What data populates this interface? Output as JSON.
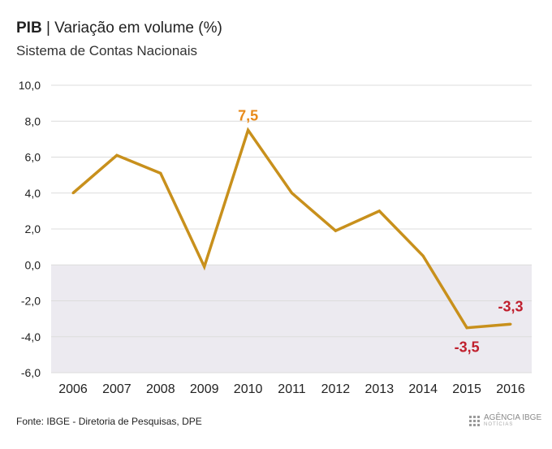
{
  "header": {
    "title_bold": "PIB",
    "title_rest": " | Variação em volume (%)",
    "subtitle": "Sistema de Contas Nacionais"
  },
  "footer": {
    "source": "Fonte: IBGE - Diretoria de Pesquisas, DPE",
    "logo_main": "AGÊNCIA IBGE",
    "logo_sub": "NOTÍCIAS"
  },
  "colors": {
    "line": "#c8901c",
    "highlight_positive": "#e88a1a",
    "highlight_negative": "#c0202e",
    "negative_band": "#eceaf0",
    "grid": "#dcdcdc"
  },
  "chart_data": {
    "type": "line",
    "categories": [
      "2006",
      "2007",
      "2008",
      "2009",
      "2010",
      "2011",
      "2012",
      "2013",
      "2014",
      "2015",
      "2016"
    ],
    "values": [
      4.0,
      6.1,
      5.1,
      -0.1,
      7.5,
      4.0,
      1.9,
      3.0,
      0.5,
      -3.5,
      -3.3
    ],
    "ylim": [
      -6,
      10
    ],
    "yticks": [
      "10,0",
      "8,0",
      "6,0",
      "4,0",
      "2,0",
      "0,0",
      "-2,0",
      "-4,0",
      "-6,0"
    ],
    "ytick_values": [
      10,
      8,
      6,
      4,
      2,
      0,
      -2,
      -4,
      -6
    ],
    "annotations": [
      {
        "category": "2010",
        "label": "7,5",
        "style": "positive"
      },
      {
        "category": "2015",
        "label": "-3,5",
        "style": "negative"
      },
      {
        "category": "2016",
        "label": "-3,3",
        "style": "negative"
      }
    ],
    "grid": true,
    "legend": "none"
  }
}
